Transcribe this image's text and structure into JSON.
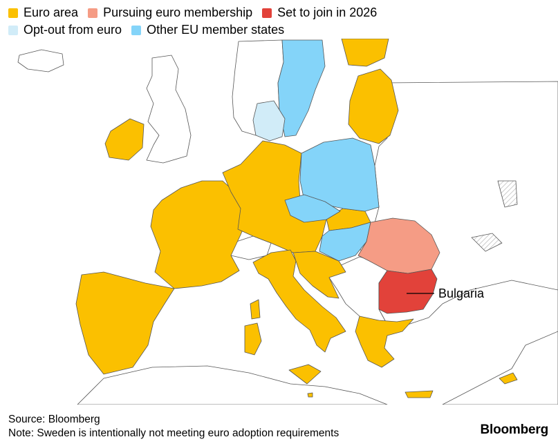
{
  "legend": {
    "items": [
      {
        "label": "Euro area",
        "color": "#fbc000",
        "icon": "square-swatch"
      },
      {
        "label": "Pursuing euro membership",
        "color": "#f59c85",
        "icon": "square-swatch"
      },
      {
        "label": "Set to join in 2026",
        "color": "#e2423a",
        "icon": "square-swatch"
      },
      {
        "label": "Opt-out from euro",
        "color": "#d1ecf8",
        "icon": "square-swatch"
      },
      {
        "label": "Other EU member states",
        "color": "#84d4f9",
        "icon": "square-swatch"
      }
    ]
  },
  "map": {
    "callout": "Bulgaria",
    "colors": {
      "euro": "#fbc000",
      "pursuing": "#f59c85",
      "join2026": "#e2423a",
      "optout": "#d1ecf8",
      "other_eu": "#84d4f9",
      "non_eu": "#ffffff",
      "border": "#555555"
    }
  },
  "footer": {
    "source": "Source: Bloomberg",
    "note": "Note: Sweden is intentionally not meeting euro adoption requirements"
  },
  "brand": "Bloomberg"
}
